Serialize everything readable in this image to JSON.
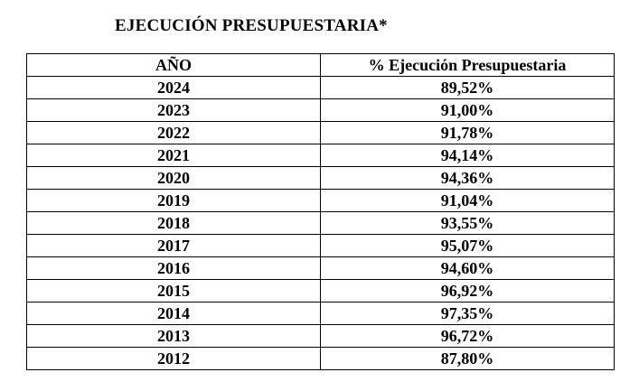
{
  "document": {
    "title": "EJECUCIÓN PRESUPUESTARIA*"
  },
  "table": {
    "headers": {
      "year": "AÑO",
      "percent": "% Ejecución Presupuestaria"
    },
    "rows": [
      {
        "year": "2024",
        "percent": "89,52%"
      },
      {
        "year": "2023",
        "percent": "91,00%"
      },
      {
        "year": "2022",
        "percent": "91,78%"
      },
      {
        "year": "2021",
        "percent": "94,14%"
      },
      {
        "year": "2020",
        "percent": "94,36%"
      },
      {
        "year": "2019",
        "percent": "91,04%"
      },
      {
        "year": "2018",
        "percent": "93,55%"
      },
      {
        "year": "2017",
        "percent": "95,07%"
      },
      {
        "year": "2016",
        "percent": "94,60%"
      },
      {
        "year": "2015",
        "percent": "96,92%"
      },
      {
        "year": "2014",
        "percent": "97,35%"
      },
      {
        "year": "2013",
        "percent": "96,72%"
      },
      {
        "year": "2012",
        "percent": "87,80%"
      }
    ]
  }
}
